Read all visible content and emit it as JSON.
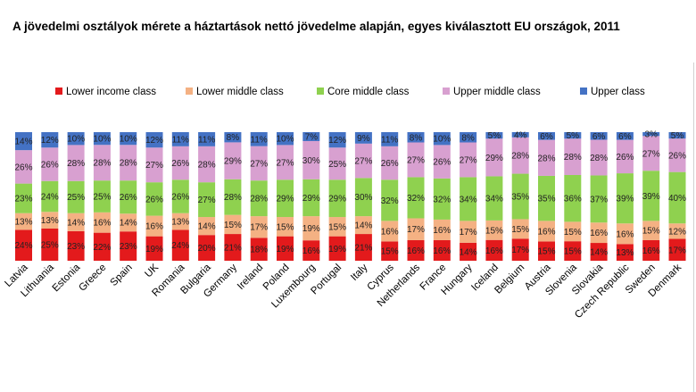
{
  "chart_data": {
    "type": "bar",
    "stacked": true,
    "percent_stacked": true,
    "title": "A jövedelmi osztályok mérete a háztartások nettó jövedelme alapján, egyes kiválasztott EU országok, 2011",
    "xlabel": "",
    "ylabel": "",
    "ylim": [
      0,
      100
    ],
    "grid": false,
    "legend_position": "top",
    "categories": [
      "Latvia",
      "Lithuania",
      "Estonia",
      "Greece",
      "Spain",
      "UK",
      "Romania",
      "Bulgaria",
      "Germany",
      "Ireland",
      "Poland",
      "Luxembourg",
      "Portugal",
      "Italy",
      "Cyprus",
      "Netherlands",
      "France",
      "Hungary",
      "Iceland",
      "Belgium",
      "Austria",
      "Slovenia",
      "Slovakia",
      "Czech Republic",
      "Sweden",
      "Denmark"
    ],
    "series": [
      {
        "name": "Lower income class",
        "color": "#e31a1c",
        "values": [
          24,
          25,
          23,
          22,
          23,
          19,
          24,
          20,
          21,
          18,
          19,
          16,
          19,
          21,
          15,
          16,
          16,
          14,
          16,
          17,
          15,
          15,
          14,
          13,
          16,
          17
        ],
        "labels": [
          "24%",
          "25%",
          "23%",
          "22%",
          "23%",
          "19%",
          "24%",
          "20%",
          "21%",
          "18%",
          "19%",
          "16%",
          "19%",
          "21%",
          "15%",
          "16%",
          "16%",
          "14%",
          "16%",
          "17%",
          "15%",
          "15%",
          "14%",
          "13%",
          "16%",
          "17%"
        ]
      },
      {
        "name": "Lower middle class",
        "color": "#f4b183",
        "values": [
          13,
          13,
          14,
          16,
          14,
          16,
          13,
          14,
          15,
          17,
          15,
          19,
          15,
          14,
          16,
          17,
          16,
          17,
          15,
          15,
          16,
          15,
          16,
          16,
          15,
          12
        ],
        "labels": [
          "13%",
          "13%",
          "14%",
          "16%",
          "14%",
          "16%",
          "13%",
          "14%",
          "15%",
          "17%",
          "15%",
          "19%",
          "15%",
          "14%",
          "16%",
          "17%",
          "16%",
          "17%",
          "15%",
          "15%",
          "16%",
          "15%",
          "16%",
          "16%",
          "15%",
          "12%"
        ]
      },
      {
        "name": "Core middle class",
        "color": "#8fd14f",
        "values": [
          23,
          24,
          25,
          25,
          26,
          26,
          26,
          27,
          28,
          28,
          29,
          29,
          29,
          30,
          32,
          32,
          32,
          34,
          34,
          35,
          35,
          36,
          37,
          39,
          39,
          40
        ],
        "labels": [
          "23%",
          "24%",
          "25%",
          "25%",
          "26%",
          "26%",
          "26%",
          "27%",
          "28%",
          "28%",
          "29%",
          "29%",
          "29%",
          "30%",
          "32%",
          "32%",
          "32%",
          "34%",
          "34%",
          "35%",
          "35%",
          "36%",
          "37%",
          "39%",
          "39%",
          "40%"
        ]
      },
      {
        "name": "Upper middle  class",
        "color": "#d8a0d0",
        "values": [
          26,
          26,
          28,
          28,
          28,
          27,
          26,
          28,
          29,
          27,
          27,
          30,
          25,
          27,
          26,
          27,
          26,
          27,
          29,
          28,
          28,
          28,
          28,
          26,
          27,
          26
        ],
        "labels": [
          "26%",
          "26%",
          "28%",
          "28%",
          "28%",
          "27%",
          "26%",
          "28%",
          "29%",
          "27%",
          "27%",
          "30%",
          "25%",
          "27%",
          "26%",
          "27%",
          "26%",
          "27%",
          "29%",
          "28%",
          "28%",
          "28%",
          "28%",
          "26%",
          "27%",
          "26%"
        ]
      },
      {
        "name": "Upper class",
        "color": "#4472c4",
        "values": [
          14,
          12,
          10,
          10,
          10,
          12,
          11,
          11,
          8,
          11,
          10,
          7,
          12,
          9,
          11,
          8,
          10,
          8,
          5,
          4,
          6,
          5,
          6,
          6,
          3,
          5
        ],
        "labels": [
          "14%",
          "12%",
          "10%",
          "10%",
          "10%",
          "12%",
          "11%",
          "11%",
          "8%",
          "11%",
          "10%",
          "7%",
          "12%",
          "9%",
          "11%",
          "8%",
          "10%",
          "8%",
          "5%",
          "4%",
          "6%",
          "5%",
          "6%",
          "6%",
          "3%",
          "5%"
        ]
      }
    ]
  }
}
